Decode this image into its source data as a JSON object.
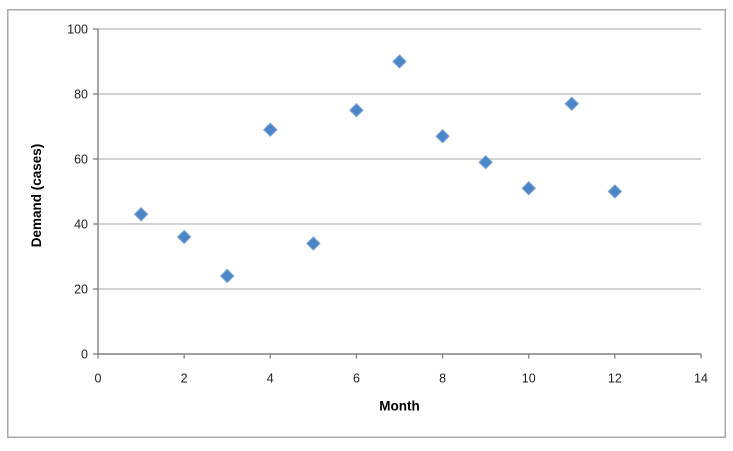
{
  "chart_data": {
    "type": "scatter",
    "title": "",
    "xlabel": "Month",
    "ylabel": "Demand (cases)",
    "x": [
      1,
      2,
      3,
      4,
      5,
      6,
      7,
      8,
      9,
      10,
      11,
      12
    ],
    "y": [
      43,
      36,
      24,
      69,
      34,
      75,
      90,
      67,
      59,
      51,
      77,
      50
    ],
    "series_name": "Demand",
    "xlim": [
      0,
      14
    ],
    "ylim": [
      0,
      100
    ],
    "xticks": [
      0,
      2,
      4,
      6,
      8,
      10,
      12,
      14
    ],
    "yticks": [
      0,
      20,
      40,
      60,
      80,
      100
    ],
    "grid": "horizontal-only",
    "legend": "none",
    "marker": "diamond",
    "colors": {
      "marker_fill": "#4C86C6",
      "marker_edge": "#7CA6DA",
      "gridline": "#C3C3C3",
      "axis_line": "#808080",
      "tick_label": "#1F1F1F",
      "axis_title": "#000000",
      "frame_border": "#A9A9A9",
      "background": "#FFFFFF"
    }
  }
}
